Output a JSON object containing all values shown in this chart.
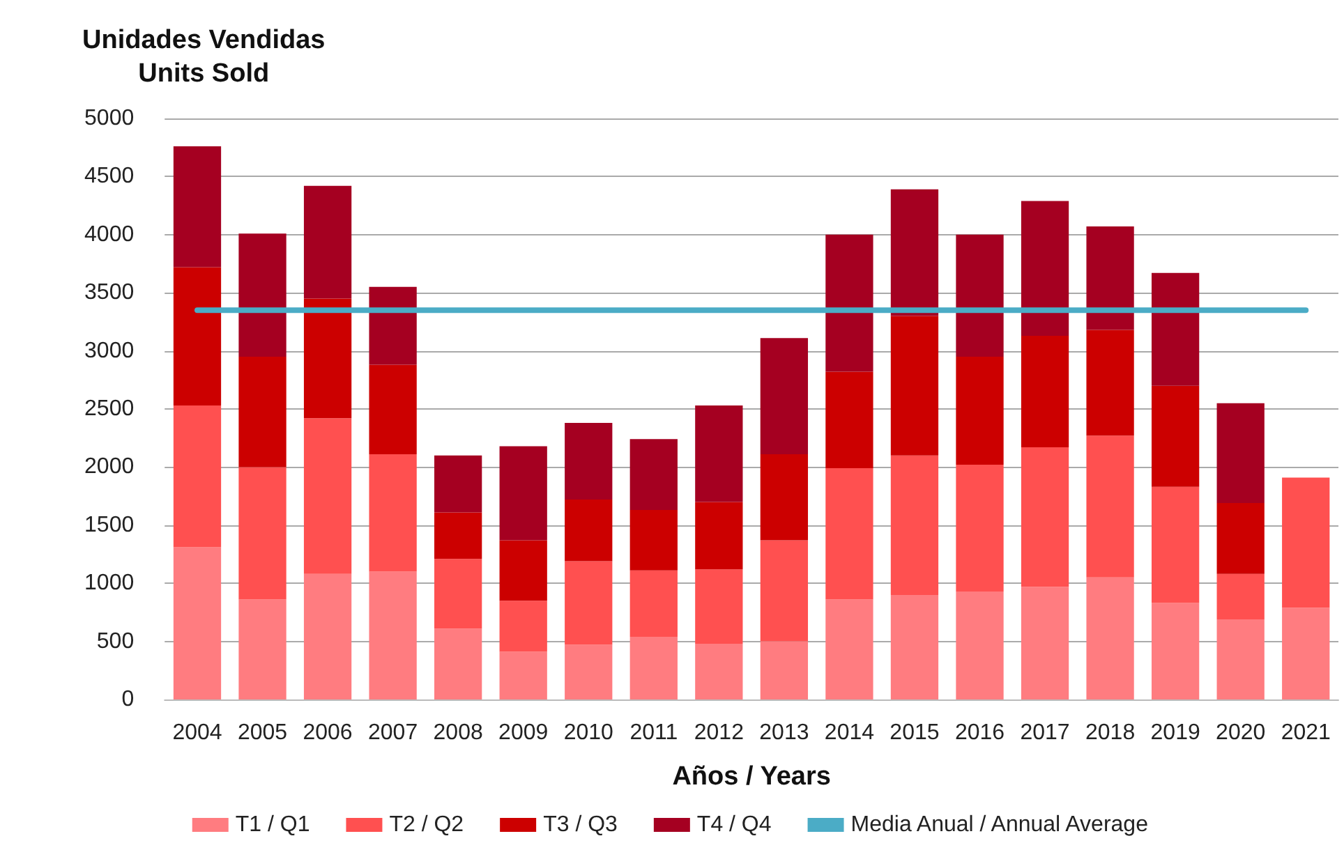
{
  "chart_data": {
    "type": "bar",
    "stacked": true,
    "ylabel": "Unidades Vendidas\nUnits Sold",
    "xlabel": "Años / Years",
    "categories": [
      "2004",
      "2005",
      "2006",
      "2007",
      "2008",
      "2009",
      "2010",
      "2011",
      "2012",
      "2013",
      "2014",
      "2015",
      "2016",
      "2017",
      "2018",
      "2019",
      "2020",
      "2021"
    ],
    "series": [
      {
        "name": "T1 / Q1",
        "color": "#ff7c80",
        "values": [
          1310,
          860,
          1080,
          1100,
          610,
          410,
          470,
          540,
          480,
          500,
          860,
          900,
          930,
          970,
          1050,
          830,
          690,
          790
        ]
      },
      {
        "name": "T2 / Q2",
        "color": "#ff5050",
        "values": [
          1220,
          1140,
          1340,
          1010,
          600,
          440,
          720,
          570,
          640,
          870,
          1130,
          1200,
          1090,
          1200,
          1220,
          1000,
          390,
          1120
        ]
      },
      {
        "name": "T3 / Q3",
        "color": "#cc0000",
        "values": [
          1190,
          950,
          1030,
          770,
          400,
          520,
          530,
          520,
          580,
          740,
          830,
          1200,
          930,
          960,
          910,
          870,
          610,
          null
        ]
      },
      {
        "name": "T4 / Q4",
        "color": "#a50021",
        "values": [
          1040,
          1060,
          970,
          670,
          490,
          810,
          660,
          610,
          830,
          1000,
          1180,
          1090,
          1050,
          1160,
          890,
          970,
          860,
          null
        ]
      },
      {
        "name": "Media Anual / Annual Average",
        "type": "line",
        "color": "#4bacc6",
        "marker": "none",
        "values": [
          3350,
          3350,
          3350,
          3350,
          3350,
          3350,
          3350,
          3350,
          3350,
          3350,
          3350,
          3350,
          3350,
          3350,
          3350,
          3350,
          3350,
          3350
        ]
      }
    ],
    "ylim": [
      0,
      5000
    ],
    "yticks": [
      0,
      500,
      1000,
      1500,
      2000,
      2500,
      3000,
      3500,
      4000,
      4500,
      5000
    ],
    "grid": "y",
    "legend": "bottom"
  }
}
